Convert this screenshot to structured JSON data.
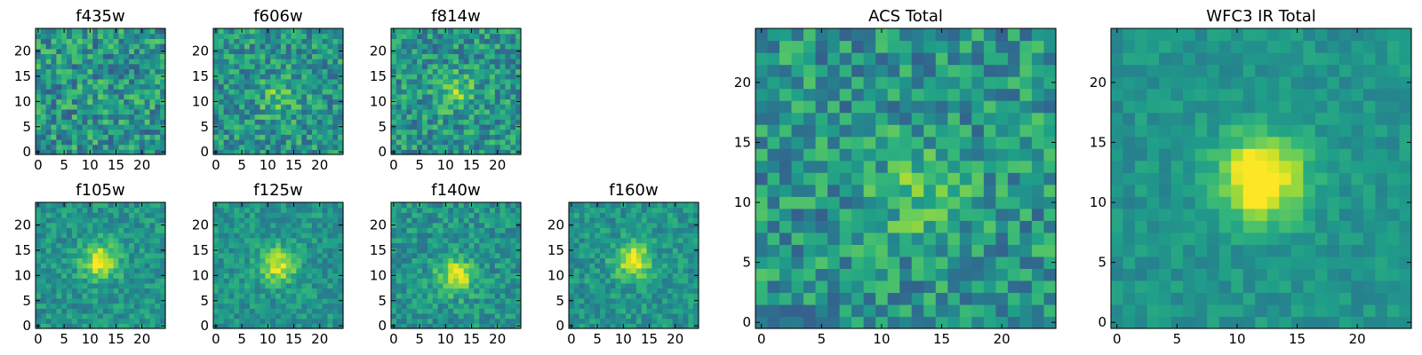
{
  "chart_data": [
    {
      "type": "heatmap",
      "title": "f435w",
      "grid": 25,
      "xticks": [
        0,
        5,
        10,
        15,
        20
      ],
      "yticks": [
        0,
        5,
        10,
        15,
        20
      ],
      "colormap": "viridis",
      "source_peak": [
        12,
        11
      ],
      "source_strength": 0.05,
      "noise": 0.55,
      "seed": 11
    },
    {
      "type": "heatmap",
      "title": "f606w",
      "grid": 25,
      "xticks": [
        0,
        5,
        10,
        15,
        20
      ],
      "yticks": [
        0,
        5,
        10,
        15,
        20
      ],
      "colormap": "viridis",
      "source_peak": [
        12,
        11
      ],
      "source_strength": 0.25,
      "noise": 0.5,
      "seed": 23
    },
    {
      "type": "heatmap",
      "title": "f814w",
      "grid": 25,
      "xticks": [
        0,
        5,
        10,
        15,
        20
      ],
      "yticks": [
        0,
        5,
        10,
        15,
        20
      ],
      "colormap": "viridis",
      "source_peak": [
        12,
        12
      ],
      "source_strength": 0.3,
      "noise": 0.5,
      "seed": 37
    },
    {
      "type": "heatmap",
      "title": "f105w",
      "grid": 25,
      "xticks": [
        0,
        5,
        10,
        15,
        20
      ],
      "yticks": [
        0,
        5,
        10,
        15,
        20
      ],
      "colormap": "viridis",
      "source_peak": [
        12,
        13
      ],
      "source_strength": 0.55,
      "noise": 0.32,
      "seed": 41
    },
    {
      "type": "heatmap",
      "title": "f125w",
      "grid": 25,
      "xticks": [
        0,
        5,
        10,
        15,
        20
      ],
      "yticks": [
        0,
        5,
        10,
        15,
        20
      ],
      "colormap": "viridis",
      "source_peak": [
        12,
        12
      ],
      "source_strength": 0.5,
      "noise": 0.3,
      "seed": 53
    },
    {
      "type": "heatmap",
      "title": "f140w",
      "grid": 25,
      "xticks": [
        0,
        5,
        10,
        15,
        20
      ],
      "yticks": [
        0,
        5,
        10,
        15,
        20
      ],
      "colormap": "viridis",
      "source_peak": [
        12,
        10
      ],
      "source_strength": 0.5,
      "noise": 0.35,
      "seed": 67
    },
    {
      "type": "heatmap",
      "title": "f160w",
      "grid": 25,
      "xticks": [
        0,
        5,
        10,
        15,
        20
      ],
      "yticks": [
        0,
        5,
        10,
        15,
        20
      ],
      "colormap": "viridis",
      "source_peak": [
        12,
        13
      ],
      "source_strength": 0.55,
      "noise": 0.32,
      "seed": 79
    },
    {
      "type": "heatmap",
      "title": "ACS Total",
      "grid": 25,
      "xticks": [
        0,
        5,
        10,
        15,
        20
      ],
      "yticks": [
        0,
        5,
        10,
        15,
        20
      ],
      "colormap": "viridis",
      "source_peak": [
        13,
        11
      ],
      "source_strength": 0.25,
      "noise": 0.5,
      "seed": 97
    },
    {
      "type": "heatmap",
      "title": "WFC3 IR Total",
      "grid": 25,
      "xticks": [
        0,
        5,
        10,
        15,
        20
      ],
      "yticks": [
        0,
        5,
        10,
        15,
        20
      ],
      "colormap": "viridis",
      "source_peak": [
        12,
        12
      ],
      "source_strength": 0.7,
      "noise": 0.2,
      "seed": 113
    }
  ]
}
